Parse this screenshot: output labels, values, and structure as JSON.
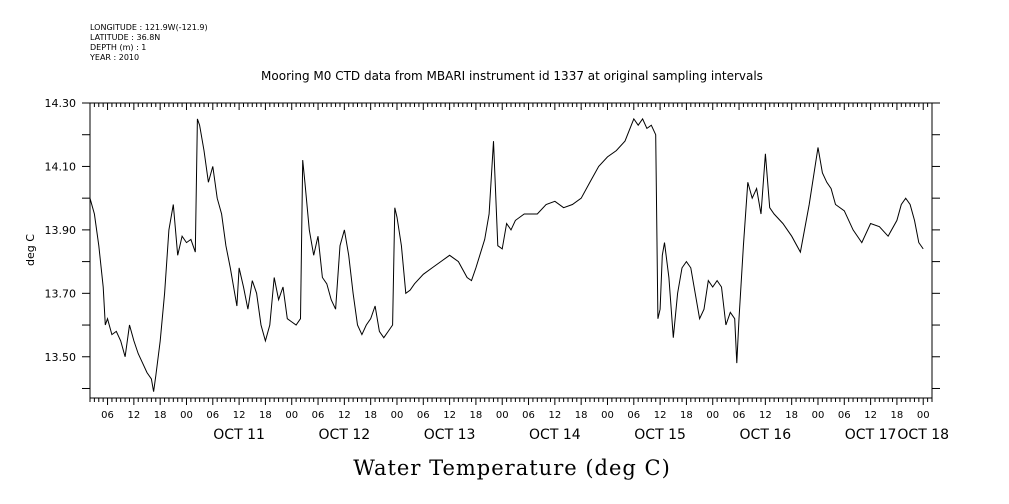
{
  "meta": {
    "longitude": "LONGITUDE : 121.9W(-121.9)",
    "latitude": "LATITUDE : 36.8N",
    "depth": "DEPTH (m) : 1",
    "year": "YEAR : 2010"
  },
  "chart_data": {
    "type": "line",
    "title": "Mooring M0 CTD data from MBARI instrument id 1337 at original sampling intervals",
    "xlabel": "Water Temperature (deg C)",
    "ylabel": "deg C",
    "xlim": [
      "2010-10-10 02:00",
      "2010-10-18 02:00"
    ],
    "ylim": [
      13.37,
      14.3
    ],
    "yticks": [
      "13.50",
      "13.70",
      "13.90",
      "14.10",
      "14.30"
    ],
    "hour_ticks": [
      "06",
      "12",
      "18",
      "00"
    ],
    "day_labels": [
      {
        "label": "OCT 11",
        "time": "2010-10-11 12:00"
      },
      {
        "label": "OCT 12",
        "time": "2010-10-12 12:00"
      },
      {
        "label": "OCT 13",
        "time": "2010-10-13 12:00"
      },
      {
        "label": "OCT 14",
        "time": "2010-10-14 12:00"
      },
      {
        "label": "OCT 15",
        "time": "2010-10-15 12:00"
      },
      {
        "label": "OCT 16",
        "time": "2010-10-16 12:00"
      },
      {
        "label": "OCT 17",
        "time": "2010-10-17 12:00"
      },
      {
        "label": "OCT 18",
        "time": "2010-10-18 00:00"
      }
    ],
    "grid": false,
    "series": [
      {
        "color": "#000000",
        "points": [
          [
            "2010-10-10 02:00",
            14.0
          ],
          [
            "2010-10-10 03:00",
            13.95
          ],
          [
            "2010-10-10 04:00",
            13.85
          ],
          [
            "2010-10-10 05:00",
            13.72
          ],
          [
            "2010-10-10 05:30",
            13.6
          ],
          [
            "2010-10-10 06:00",
            13.62
          ],
          [
            "2010-10-10 07:00",
            13.57
          ],
          [
            "2010-10-10 08:00",
            13.58
          ],
          [
            "2010-10-10 09:00",
            13.55
          ],
          [
            "2010-10-10 10:00",
            13.5
          ],
          [
            "2010-10-10 11:00",
            13.6
          ],
          [
            "2010-10-10 12:00",
            13.55
          ],
          [
            "2010-10-10 13:00",
            13.51
          ],
          [
            "2010-10-10 14:00",
            13.48
          ],
          [
            "2010-10-10 15:00",
            13.45
          ],
          [
            "2010-10-10 16:00",
            13.43
          ],
          [
            "2010-10-10 16:30",
            13.39
          ],
          [
            "2010-10-10 17:00",
            13.44
          ],
          [
            "2010-10-10 18:00",
            13.55
          ],
          [
            "2010-10-10 19:00",
            13.7
          ],
          [
            "2010-10-10 20:00",
            13.9
          ],
          [
            "2010-10-10 21:00",
            13.98
          ],
          [
            "2010-10-10 22:00",
            13.82
          ],
          [
            "2010-10-10 23:00",
            13.88
          ],
          [
            "2010-10-11 00:00",
            13.86
          ],
          [
            "2010-10-11 01:00",
            13.87
          ],
          [
            "2010-10-11 02:00",
            13.83
          ],
          [
            "2010-10-11 02:30",
            14.25
          ],
          [
            "2010-10-11 03:00",
            14.23
          ],
          [
            "2010-10-11 04:00",
            14.15
          ],
          [
            "2010-10-11 05:00",
            14.05
          ],
          [
            "2010-10-11 06:00",
            14.1
          ],
          [
            "2010-10-11 07:00",
            14.0
          ],
          [
            "2010-10-11 08:00",
            13.95
          ],
          [
            "2010-10-11 09:00",
            13.85
          ],
          [
            "2010-10-11 10:00",
            13.78
          ],
          [
            "2010-10-11 11:00",
            13.7
          ],
          [
            "2010-10-11 11:30",
            13.66
          ],
          [
            "2010-10-11 12:00",
            13.78
          ],
          [
            "2010-10-11 13:00",
            13.72
          ],
          [
            "2010-10-11 14:00",
            13.65
          ],
          [
            "2010-10-11 15:00",
            13.74
          ],
          [
            "2010-10-11 16:00",
            13.7
          ],
          [
            "2010-10-11 17:00",
            13.6
          ],
          [
            "2010-10-11 18:00",
            13.55
          ],
          [
            "2010-10-11 19:00",
            13.6
          ],
          [
            "2010-10-11 20:00",
            13.75
          ],
          [
            "2010-10-11 21:00",
            13.68
          ],
          [
            "2010-10-11 22:00",
            13.72
          ],
          [
            "2010-10-11 23:00",
            13.62
          ],
          [
            "2010-10-12 00:00",
            13.61
          ],
          [
            "2010-10-12 01:00",
            13.6
          ],
          [
            "2010-10-12 02:00",
            13.62
          ],
          [
            "2010-10-12 02:30",
            14.12
          ],
          [
            "2010-10-12 03:00",
            14.05
          ],
          [
            "2010-10-12 04:00",
            13.9
          ],
          [
            "2010-10-12 05:00",
            13.82
          ],
          [
            "2010-10-12 06:00",
            13.88
          ],
          [
            "2010-10-12 07:00",
            13.75
          ],
          [
            "2010-10-12 08:00",
            13.73
          ],
          [
            "2010-10-12 09:00",
            13.68
          ],
          [
            "2010-10-12 10:00",
            13.65
          ],
          [
            "2010-10-12 11:00",
            13.85
          ],
          [
            "2010-10-12 12:00",
            13.9
          ],
          [
            "2010-10-12 13:00",
            13.82
          ],
          [
            "2010-10-12 14:00",
            13.7
          ],
          [
            "2010-10-12 15:00",
            13.6
          ],
          [
            "2010-10-12 16:00",
            13.57
          ],
          [
            "2010-10-12 17:00",
            13.6
          ],
          [
            "2010-10-12 18:00",
            13.62
          ],
          [
            "2010-10-12 19:00",
            13.66
          ],
          [
            "2010-10-12 20:00",
            13.58
          ],
          [
            "2010-10-12 21:00",
            13.56
          ],
          [
            "2010-10-12 22:00",
            13.58
          ],
          [
            "2010-10-12 23:00",
            13.6
          ],
          [
            "2010-10-12 23:30",
            13.97
          ],
          [
            "2010-10-13 00:00",
            13.94
          ],
          [
            "2010-10-13 01:00",
            13.85
          ],
          [
            "2010-10-13 02:00",
            13.7
          ],
          [
            "2010-10-13 03:00",
            13.71
          ],
          [
            "2010-10-13 04:00",
            13.73
          ],
          [
            "2010-10-13 06:00",
            13.76
          ],
          [
            "2010-10-13 08:00",
            13.78
          ],
          [
            "2010-10-13 10:00",
            13.8
          ],
          [
            "2010-10-13 12:00",
            13.82
          ],
          [
            "2010-10-13 14:00",
            13.8
          ],
          [
            "2010-10-13 16:00",
            13.75
          ],
          [
            "2010-10-13 17:00",
            13.74
          ],
          [
            "2010-10-13 18:00",
            13.78
          ],
          [
            "2010-10-13 20:00",
            13.87
          ],
          [
            "2010-10-13 21:00",
            13.95
          ],
          [
            "2010-10-13 22:00",
            14.18
          ],
          [
            "2010-10-13 23:00",
            13.85
          ],
          [
            "2010-10-14 00:00",
            13.84
          ],
          [
            "2010-10-14 01:00",
            13.92
          ],
          [
            "2010-10-14 02:00",
            13.9
          ],
          [
            "2010-10-14 03:00",
            13.93
          ],
          [
            "2010-10-14 05:00",
            13.95
          ],
          [
            "2010-10-14 08:00",
            13.95
          ],
          [
            "2010-10-14 10:00",
            13.98
          ],
          [
            "2010-10-14 12:00",
            13.99
          ],
          [
            "2010-10-14 14:00",
            13.97
          ],
          [
            "2010-10-14 16:00",
            13.98
          ],
          [
            "2010-10-14 18:00",
            14.0
          ],
          [
            "2010-10-14 20:00",
            14.05
          ],
          [
            "2010-10-14 22:00",
            14.1
          ],
          [
            "2010-10-15 00:00",
            14.13
          ],
          [
            "2010-10-15 02:00",
            14.15
          ],
          [
            "2010-10-15 04:00",
            14.18
          ],
          [
            "2010-10-15 06:00",
            14.25
          ],
          [
            "2010-10-15 07:00",
            14.23
          ],
          [
            "2010-10-15 08:00",
            14.25
          ],
          [
            "2010-10-15 09:00",
            14.22
          ],
          [
            "2010-10-15 10:00",
            14.23
          ],
          [
            "2010-10-15 11:00",
            14.2
          ],
          [
            "2010-10-15 11:30",
            13.62
          ],
          [
            "2010-10-15 12:00",
            13.65
          ],
          [
            "2010-10-15 12:30",
            13.82
          ],
          [
            "2010-10-15 13:00",
            13.86
          ],
          [
            "2010-10-15 14:00",
            13.75
          ],
          [
            "2010-10-15 15:00",
            13.56
          ],
          [
            "2010-10-15 16:00",
            13.7
          ],
          [
            "2010-10-15 17:00",
            13.78
          ],
          [
            "2010-10-15 18:00",
            13.8
          ],
          [
            "2010-10-15 19:00",
            13.78
          ],
          [
            "2010-10-15 20:00",
            13.7
          ],
          [
            "2010-10-15 21:00",
            13.62
          ],
          [
            "2010-10-15 22:00",
            13.65
          ],
          [
            "2010-10-15 23:00",
            13.74
          ],
          [
            "2010-10-16 00:00",
            13.72
          ],
          [
            "2010-10-16 01:00",
            13.74
          ],
          [
            "2010-10-16 02:00",
            13.72
          ],
          [
            "2010-10-16 03:00",
            13.6
          ],
          [
            "2010-10-16 04:00",
            13.64
          ],
          [
            "2010-10-16 05:00",
            13.62
          ],
          [
            "2010-10-16 05:30",
            13.48
          ],
          [
            "2010-10-16 06:00",
            13.62
          ],
          [
            "2010-10-16 07:00",
            13.85
          ],
          [
            "2010-10-16 08:00",
            14.05
          ],
          [
            "2010-10-16 09:00",
            14.0
          ],
          [
            "2010-10-16 10:00",
            14.03
          ],
          [
            "2010-10-16 11:00",
            13.95
          ],
          [
            "2010-10-16 12:00",
            14.14
          ],
          [
            "2010-10-16 13:00",
            13.97
          ],
          [
            "2010-10-16 14:00",
            13.95
          ],
          [
            "2010-10-16 16:00",
            13.92
          ],
          [
            "2010-10-16 18:00",
            13.88
          ],
          [
            "2010-10-16 20:00",
            13.83
          ],
          [
            "2010-10-16 22:00",
            13.98
          ],
          [
            "2010-10-17 00:00",
            14.16
          ],
          [
            "2010-10-17 01:00",
            14.08
          ],
          [
            "2010-10-17 02:00",
            14.05
          ],
          [
            "2010-10-17 03:00",
            14.03
          ],
          [
            "2010-10-17 04:00",
            13.98
          ],
          [
            "2010-10-17 06:00",
            13.96
          ],
          [
            "2010-10-17 08:00",
            13.9
          ],
          [
            "2010-10-17 10:00",
            13.86
          ],
          [
            "2010-10-17 12:00",
            13.92
          ],
          [
            "2010-10-17 14:00",
            13.91
          ],
          [
            "2010-10-17 16:00",
            13.88
          ],
          [
            "2010-10-17 18:00",
            13.93
          ],
          [
            "2010-10-17 19:00",
            13.98
          ],
          [
            "2010-10-17 20:00",
            14.0
          ],
          [
            "2010-10-17 21:00",
            13.98
          ],
          [
            "2010-10-17 22:00",
            13.93
          ],
          [
            "2010-10-17 23:00",
            13.86
          ],
          [
            "2010-10-18 00:00",
            13.84
          ]
        ]
      }
    ]
  }
}
